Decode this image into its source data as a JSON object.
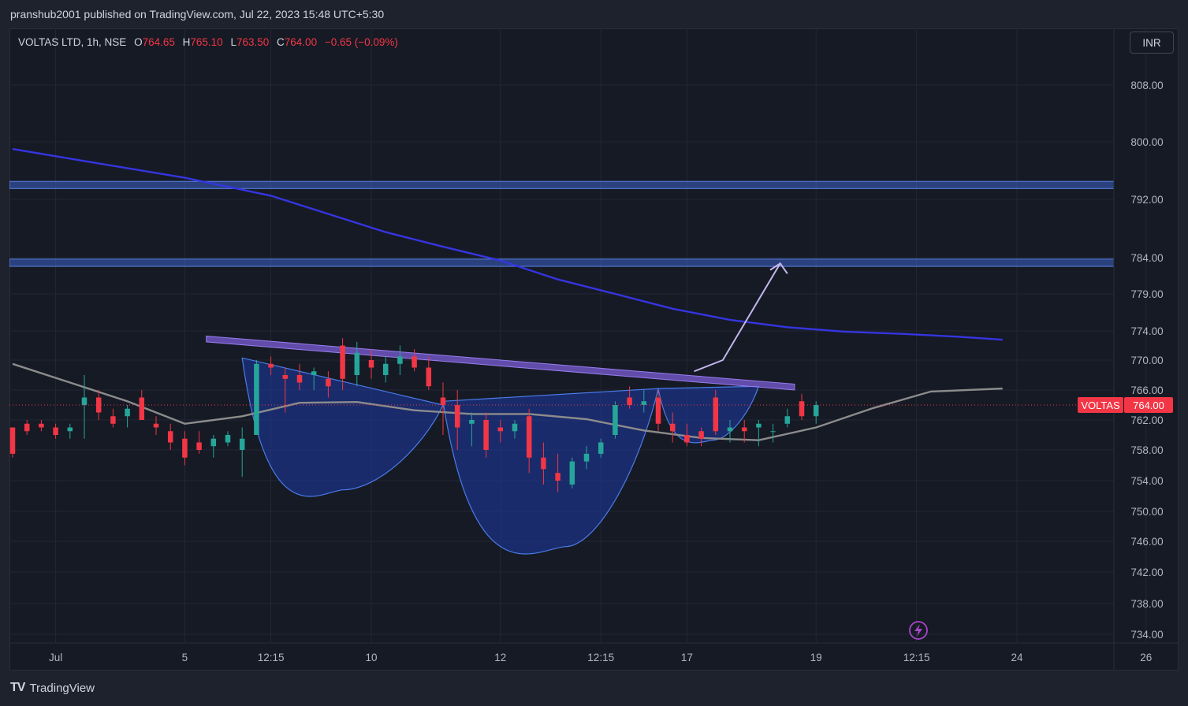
{
  "header": {
    "publisher_line": "pranshub2001 published on TradingView.com, Jul 22, 2023 15:48 UTC+5:30"
  },
  "legend": {
    "symbol": "VOLTAS LTD, 1h, NSE",
    "open_key": "O",
    "open": "764.65",
    "high_key": "H",
    "high": "765.10",
    "low_key": "L",
    "low": "763.50",
    "close_key": "C",
    "close": "764.00",
    "change": "−0.65 (−0.09%)"
  },
  "currency_button": "INR",
  "footer": {
    "brand": "TradingView",
    "logo": "TV"
  },
  "colors": {
    "up": "#26a69a",
    "down": "#f23645",
    "ma_long": "#3535e0",
    "ma_short": "#8c8c8c",
    "pattern_fill": "#1f3aa6",
    "trendline": "#7b5fd6",
    "zone": "#3e63c9",
    "projection": "#c3b6ec",
    "price_label": "#f23645"
  },
  "chart_data": {
    "type": "candlestick",
    "symbol": "VOLTAS",
    "interval": "1h",
    "exchange": "NSE",
    "currency": "INR",
    "y_ticks": [
      "808.00",
      "800.00",
      "792.00",
      "784.00",
      "779.00",
      "774.00",
      "770.00",
      "766.00",
      "762.00",
      "758.00",
      "754.00",
      "750.00",
      "746.00",
      "742.00",
      "738.00",
      "734.00"
    ],
    "x_ticks": [
      {
        "label": "Jul",
        "i": 3
      },
      {
        "label": "5",
        "i": 12
      },
      {
        "label": "12:15",
        "i": 18
      },
      {
        "label": "10",
        "i": 25
      },
      {
        "label": "12",
        "i": 34
      },
      {
        "label": "12:15",
        "i": 41
      },
      {
        "label": "17",
        "i": 47
      },
      {
        "label": "19",
        "i": 56
      },
      {
        "label": "12:15",
        "i": 63
      },
      {
        "label": "24",
        "i": 70
      },
      {
        "label": "26",
        "i": 79
      }
    ],
    "last_price": "764.00",
    "last_symbol": "VOLTAS",
    "candles": [
      [
        761.0,
        761.0,
        757.0,
        757.5
      ],
      [
        761.5,
        762.0,
        760.0,
        760.5
      ],
      [
        761.5,
        762.0,
        760.5,
        761.0
      ],
      [
        761.0,
        761.5,
        759.5,
        760.0
      ],
      [
        760.5,
        761.5,
        759.5,
        761.0
      ],
      [
        764.0,
        768.0,
        759.5,
        765.0
      ],
      [
        765.0,
        766.0,
        762.0,
        763.0
      ],
      [
        762.5,
        763.5,
        761.0,
        761.5
      ],
      [
        762.5,
        764.0,
        761.0,
        763.5
      ],
      [
        765.0,
        766.0,
        762.0,
        762.0
      ],
      [
        761.5,
        762.5,
        760.0,
        761.0
      ],
      [
        760.5,
        761.5,
        758.0,
        759.0
      ],
      [
        759.5,
        760.5,
        756.0,
        757.0
      ],
      [
        759.0,
        760.5,
        757.5,
        758.0
      ],
      [
        758.5,
        760.0,
        757.0,
        759.5
      ],
      [
        759.0,
        760.5,
        758.5,
        760.0
      ],
      [
        758.0,
        761.0,
        754.5,
        759.5
      ],
      [
        760.0,
        770.0,
        760.0,
        769.5
      ],
      [
        769.5,
        770.5,
        768.0,
        769.0
      ],
      [
        768.0,
        769.0,
        763.0,
        767.5
      ],
      [
        768.0,
        769.5,
        766.0,
        767.0
      ],
      [
        768.0,
        769.0,
        766.0,
        768.5
      ],
      [
        767.5,
        768.5,
        765.0,
        766.5
      ],
      [
        772.0,
        773.0,
        766.0,
        767.5
      ],
      [
        768.0,
        772.5,
        766.5,
        771.0
      ],
      [
        770.0,
        771.5,
        767.5,
        769.0
      ],
      [
        768.0,
        770.5,
        767.0,
        769.5
      ],
      [
        769.5,
        772.0,
        768.0,
        770.5
      ],
      [
        770.5,
        771.5,
        768.5,
        769.0
      ],
      [
        769.0,
        770.5,
        766.0,
        766.5
      ],
      [
        765.0,
        767.0,
        760.0,
        764.0
      ],
      [
        764.0,
        766.0,
        758.0,
        761.0
      ],
      [
        761.5,
        763.0,
        758.5,
        762.0
      ],
      [
        762.0,
        763.0,
        757.0,
        758.0
      ],
      [
        761.0,
        762.0,
        759.0,
        760.5
      ],
      [
        760.5,
        762.0,
        759.5,
        761.5
      ],
      [
        762.5,
        763.5,
        755.0,
        757.0
      ],
      [
        757.0,
        759.0,
        753.5,
        755.5
      ],
      [
        755.0,
        757.5,
        752.5,
        754.0
      ],
      [
        753.5,
        757.0,
        753.0,
        756.5
      ],
      [
        756.5,
        758.5,
        755.5,
        757.5
      ],
      [
        757.5,
        759.5,
        757.0,
        759.0
      ],
      [
        760.0,
        764.5,
        759.5,
        764.0
      ],
      [
        765.0,
        766.5,
        763.5,
        764.0
      ],
      [
        764.0,
        766.0,
        763.0,
        764.5
      ],
      [
        765.0,
        766.0,
        760.5,
        761.5
      ],
      [
        761.5,
        763.0,
        759.0,
        760.5
      ],
      [
        760.0,
        761.5,
        758.5,
        759.0
      ],
      [
        760.5,
        761.0,
        758.5,
        759.5
      ],
      [
        765.0,
        766.0,
        760.0,
        760.5
      ],
      [
        760.5,
        762.0,
        759.0,
        761.0
      ],
      [
        761.0,
        762.0,
        759.0,
        760.5
      ],
      [
        761.0,
        762.0,
        758.5,
        761.5
      ],
      [
        760.5,
        761.5,
        759.0,
        760.5
      ],
      [
        761.5,
        763.5,
        761.0,
        762.5
      ],
      [
        764.5,
        765.5,
        762.0,
        762.5
      ],
      [
        762.5,
        764.5,
        761.5,
        764.0
      ]
    ]
  }
}
